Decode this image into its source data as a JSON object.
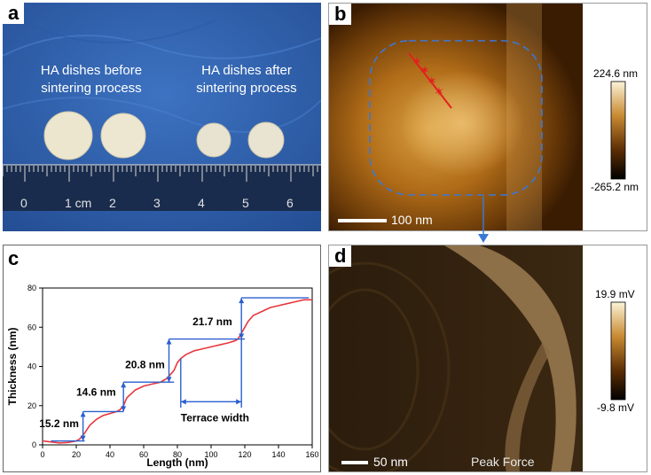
{
  "panels": {
    "a": {
      "label": "a",
      "caption_before": "HA dishes before sintering process",
      "caption_after": "HA dishes after sintering process",
      "ruler_labels": [
        "0",
        "1 cm",
        "2",
        "3",
        "4",
        "5",
        "6"
      ]
    },
    "b": {
      "label": "b",
      "colorbar_max": "224.6 nm",
      "colorbar_min": "-265.2 nm",
      "scale_bar": "100 nm"
    },
    "c": {
      "label": "c",
      "annotations": [
        "15.2 nm",
        "14.6 nm",
        "20.8 nm",
        "21.7 nm",
        "Terrace width"
      ]
    },
    "d": {
      "label": "d",
      "colorbar_max": "19.9 mV",
      "colorbar_min": "-9.8 mV",
      "scale_bar": "50 nm",
      "mode_label": "Peak Force"
    }
  },
  "chart_data": {
    "type": "line",
    "xlabel": "Length (nm)",
    "ylabel": "Thickness (nm)",
    "xlim": [
      0,
      160
    ],
    "ylim": [
      0,
      80
    ],
    "xticks": [
      0,
      20,
      40,
      60,
      80,
      100,
      120,
      140,
      160
    ],
    "yticks": [
      0,
      20,
      40,
      60,
      80
    ],
    "series": [
      {
        "color": "#e8383d",
        "x": [
          0,
          5,
          10,
          15,
          20,
          22,
          25,
          28,
          32,
          36,
          40,
          44,
          46,
          48,
          50,
          55,
          60,
          65,
          70,
          72,
          74,
          76,
          78,
          80,
          82,
          85,
          90,
          95,
          100,
          105,
          110,
          114,
          116,
          118,
          120,
          122,
          125,
          130,
          135,
          140,
          145,
          150,
          155,
          160
        ],
        "y": [
          2,
          1.5,
          1,
          1.2,
          2,
          3,
          6,
          10,
          13,
          15,
          16,
          17,
          18,
          20,
          24,
          28,
          30,
          31,
          32,
          33,
          34,
          36,
          38,
          42,
          44,
          46,
          48,
          49,
          50,
          51,
          52,
          53,
          54,
          57,
          60,
          63,
          66,
          68,
          70,
          71,
          72,
          73,
          74,
          74
        ]
      }
    ]
  }
}
